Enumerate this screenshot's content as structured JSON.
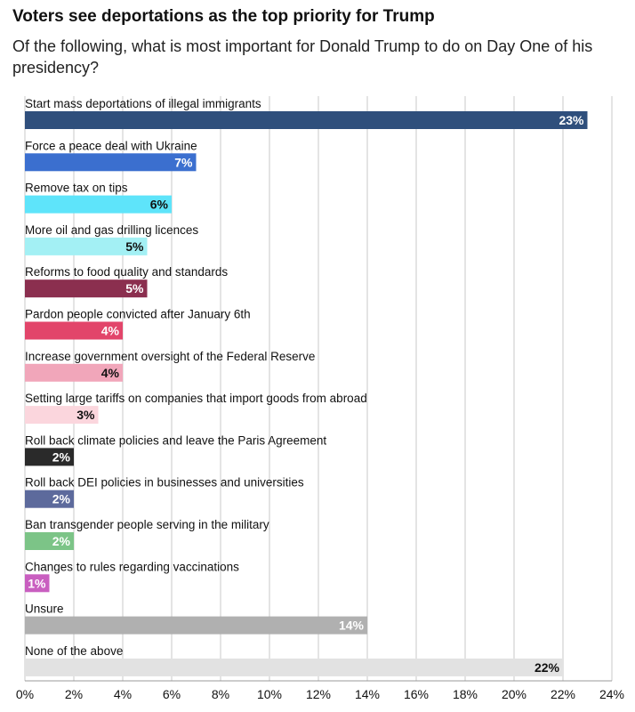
{
  "header": {
    "title": "Voters see deportations as the top priority for Trump",
    "subtitle": "Of the following, what is most important for Donald Trump to do on Day One of his presidency?"
  },
  "chart_data": {
    "type": "bar",
    "orientation": "horizontal",
    "title": "Voters see deportations as the top priority for Trump",
    "subtitle": "Of the following, what is most important for Donald Trump to do on Day One of his presidency?",
    "xlabel": "",
    "ylabel": "",
    "xlim": [
      0,
      24
    ],
    "tick_step": 2,
    "tick_suffix": "%",
    "grid": "vertical",
    "legend": "none",
    "categories": [
      "Start mass deportations of illegal immigrants",
      "Force a peace deal with Ukraine",
      "Remove tax on tips",
      "More oil and gas drilling licences",
      "Reforms to food quality and standards",
      "Pardon people convicted after January 6th",
      "Increase government oversight of the Federal Reserve",
      "Setting large tariffs on companies that import goods from abroad",
      "Roll back climate policies and leave the Paris Agreement",
      "Roll back DEI policies in businesses and universities",
      "Ban transgender people serving in the military",
      "Changes to rules regarding vaccinations",
      "Unsure",
      "None of the above"
    ],
    "values": [
      23,
      7,
      6,
      5,
      5,
      4,
      4,
      3,
      2,
      2,
      2,
      1,
      14,
      22
    ],
    "value_labels": [
      "23%",
      "7%",
      "6%",
      "5%",
      "5%",
      "4%",
      "4%",
      "3%",
      "2%",
      "2%",
      "2%",
      "1%",
      "14%",
      "22%"
    ],
    "colors": [
      "#2f4f7c",
      "#3b6fcf",
      "#5ee4fa",
      "#a3f0f4",
      "#8b2f4f",
      "#e2456a",
      "#f1a6ba",
      "#fbd6dd",
      "#2a2a2a",
      "#5d6a9c",
      "#7cc487",
      "#c95fc0",
      "#b0b0b0",
      "#e2e2e2"
    ],
    "label_colors": [
      "#ffffff",
      "#ffffff",
      "#111111",
      "#111111",
      "#ffffff",
      "#ffffff",
      "#111111",
      "#111111",
      "#ffffff",
      "#ffffff",
      "#ffffff",
      "#ffffff",
      "#ffffff",
      "#111111"
    ]
  }
}
